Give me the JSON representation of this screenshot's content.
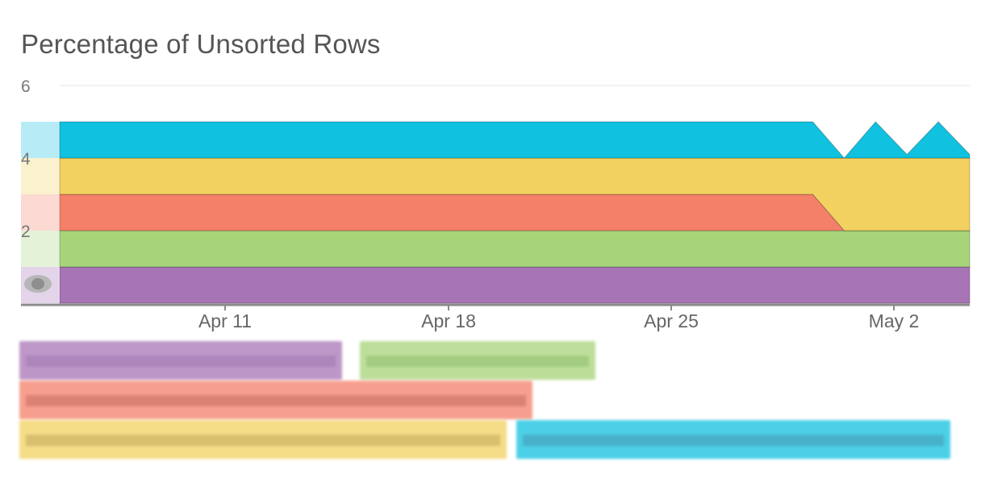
{
  "chart_data": {
    "type": "area",
    "title": "Percentage of Unsorted Rows",
    "stacked": true,
    "x_tick_labels": [
      "Apr 11",
      "Apr 18",
      "Apr 25",
      "May 2"
    ],
    "y_tick_labels": [
      "2",
      "4",
      "6"
    ],
    "ylim": [
      0,
      6
    ],
    "xlim": [
      "2016-04-05",
      "2016-05-04"
    ],
    "grid": true,
    "x": [
      "2016-04-05",
      "2016-04-29",
      "2016-04-30",
      "2016-05-01",
      "2016-05-02",
      "2016-05-03",
      "2016-05-04"
    ],
    "series": [
      {
        "color": "#a775b6",
        "values": [
          1,
          1,
          1,
          1,
          1,
          1,
          1
        ]
      },
      {
        "color": "#a7d479",
        "values": [
          1,
          1,
          1,
          1,
          1,
          1,
          1
        ]
      },
      {
        "color": "#f4806a",
        "values": [
          1,
          1,
          0,
          0,
          0,
          0,
          0
        ]
      },
      {
        "color": "#f2d160",
        "values": [
          1,
          1,
          2,
          2,
          2,
          2,
          2
        ]
      },
      {
        "color": "#10c1e0",
        "values": [
          1,
          1,
          0,
          1,
          0.1,
          1,
          0.1
        ]
      }
    ]
  },
  "legend_toggle": {
    "icon": "eye-icon"
  },
  "legend": [
    {
      "color": "#a775b6",
      "dark": "#8f5aa3"
    },
    {
      "color": "#a7d479",
      "dark": "#7fb651"
    },
    {
      "color": "#f4806a",
      "dark": "#c95240"
    },
    {
      "color": "#f2d160",
      "dark": "#c4a338"
    },
    {
      "color": "#10c1e0",
      "dark": "#0a91b0"
    }
  ]
}
